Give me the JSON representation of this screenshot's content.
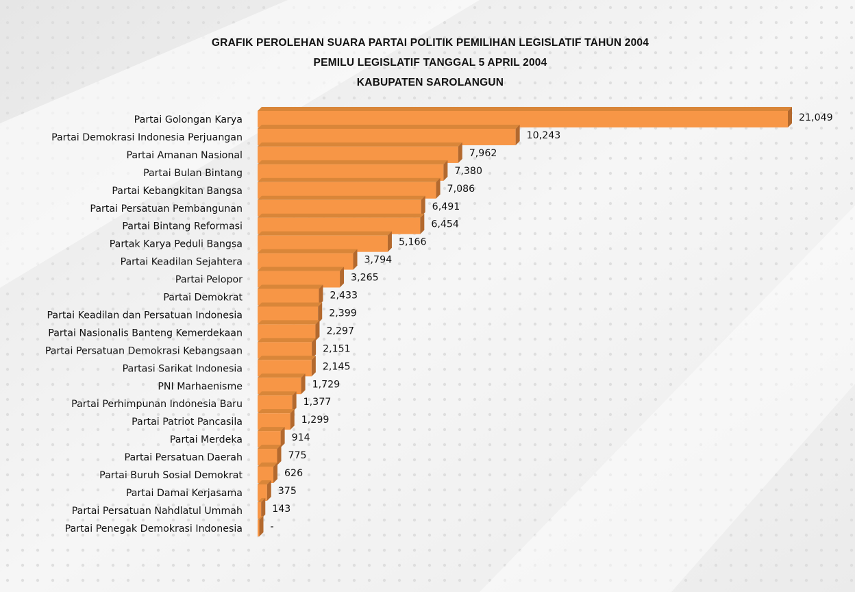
{
  "chart_data": {
    "type": "bar",
    "orientation": "horizontal",
    "title": "GRAFIK PEROLEHAN SUARA PARTAI POLITIK PEMILIHAN LEGISLATIF TAHUN 2004",
    "subtitle": "PEMILU LEGISLATIF TANGGAL 5 APRIL 2004",
    "subtitle2": "KABUPATEN SAROLANGUN",
    "xlabel": "",
    "ylabel": "",
    "grid": false,
    "legend": "none",
    "bar_color": "#F79646",
    "bar_side_color": "#B3692E",
    "bar_top_color": "#D98639",
    "categories": [
      "Partai Golongan Karya",
      "Partai Demokrasi Indonesia Perjuangan",
      "Partai Amanan Nasional",
      "Partai Bulan Bintang",
      "Partai Kebangkitan Bangsa",
      "Partai Persatuan Pembangunan",
      "Partai Bintang Reformasi",
      "Partak Karya Peduli Bangsa",
      "Partai Keadilan Sejahtera",
      "Partai Pelopor",
      "Partai Demokrat",
      "Partai Keadilan dan Persatuan Indonesia",
      "Partai Nasionalis Banteng Kemerdekaan",
      "Partai Persatuan Demokrasi Kebangsaan",
      "Partasi Sarikat Indonesia",
      "PNI Marhaenisme",
      "Partai Perhimpunan Indonesia Baru",
      "Partai Patriot Pancasila",
      "Partai Merdeka",
      "Partai Persatuan Daerah",
      "Partai Buruh Sosial Demokrat",
      "Partai Damai Kerjasama",
      "Partai Persatuan Nahdlatul Ummah",
      "Partai Penegak Demokrasi Indonesia"
    ],
    "values": [
      21049,
      10243,
      7962,
      7380,
      7086,
      6491,
      6454,
      5166,
      3794,
      3265,
      2433,
      2399,
      2297,
      2151,
      2145,
      1729,
      1377,
      1299,
      914,
      775,
      626,
      375,
      143,
      0
    ],
    "data_labels": [
      "21,049",
      "10,243",
      "7,962",
      "7,380",
      "7,086",
      "6,491",
      "6,454",
      "5,166",
      "3,794",
      "3,265",
      "2,433",
      "2,399",
      "2,297",
      "2,151",
      "2,145",
      "1,729",
      "1,377",
      "1,299",
      "914",
      "775",
      "626",
      "375",
      "143",
      "-"
    ],
    "xlim": [
      0,
      21049
    ]
  }
}
